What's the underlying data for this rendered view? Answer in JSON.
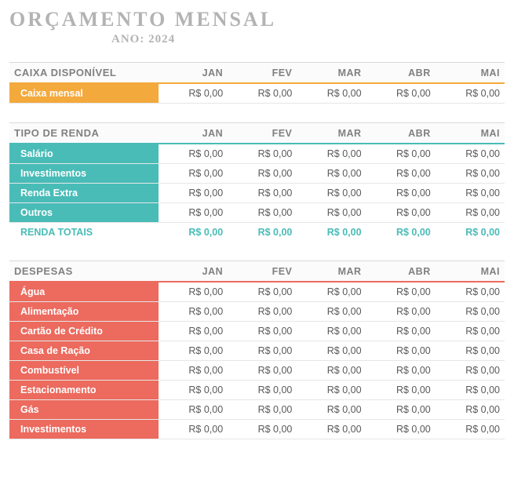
{
  "title": "ORÇAMENTO MENSAL",
  "subtitle": "ANO: 2024",
  "months": [
    "JAN",
    "FEV",
    "MAR",
    "ABR",
    "MAI"
  ],
  "zero_value": "R$ 0,00",
  "colors": {
    "caixa_accent": "#f4a93c",
    "renda_accent": "#49bcb7",
    "despesas_accent": "#ec6a5e",
    "header_text": "#808080",
    "cell_text": "#595959",
    "title_text": "#b3b3b3"
  },
  "sections": [
    {
      "id": "caixa",
      "header": "CAIXA DISPONÍVEL",
      "accent": "#f4a93c",
      "rows": [
        {
          "label": "Caixa mensal",
          "values": [
            "R$ 0,00",
            "R$ 0,00",
            "R$ 0,00",
            "R$ 0,00",
            "R$ 0,00"
          ]
        }
      ]
    },
    {
      "id": "renda",
      "header": "TIPO DE RENDA",
      "accent": "#49bcb7",
      "rows": [
        {
          "label": "Salário",
          "values": [
            "R$ 0,00",
            "R$ 0,00",
            "R$ 0,00",
            "R$ 0,00",
            "R$ 0,00"
          ]
        },
        {
          "label": "Investimentos",
          "values": [
            "R$ 0,00",
            "R$ 0,00",
            "R$ 0,00",
            "R$ 0,00",
            "R$ 0,00"
          ]
        },
        {
          "label": "Renda Extra",
          "values": [
            "R$ 0,00",
            "R$ 0,00",
            "R$ 0,00",
            "R$ 0,00",
            "R$ 0,00"
          ]
        },
        {
          "label": "Outros",
          "values": [
            "R$ 0,00",
            "R$ 0,00",
            "R$ 0,00",
            "R$ 0,00",
            "R$ 0,00"
          ]
        }
      ],
      "totals": {
        "label": "RENDA TOTAIS",
        "values": [
          "R$ 0,00",
          "R$ 0,00",
          "R$ 0,00",
          "R$ 0,00",
          "R$ 0,00"
        ]
      }
    },
    {
      "id": "despesas",
      "header": "DESPESAS",
      "accent": "#ec6a5e",
      "rows": [
        {
          "label": "Água",
          "values": [
            "R$ 0,00",
            "R$ 0,00",
            "R$ 0,00",
            "R$ 0,00",
            "R$ 0,00"
          ]
        },
        {
          "label": "Alimentação",
          "values": [
            "R$ 0,00",
            "R$ 0,00",
            "R$ 0,00",
            "R$ 0,00",
            "R$ 0,00"
          ]
        },
        {
          "label": "Cartão de Crédito",
          "values": [
            "R$ 0,00",
            "R$ 0,00",
            "R$ 0,00",
            "R$ 0,00",
            "R$ 0,00"
          ]
        },
        {
          "label": "Casa de Ração",
          "values": [
            "R$ 0,00",
            "R$ 0,00",
            "R$ 0,00",
            "R$ 0,00",
            "R$ 0,00"
          ]
        },
        {
          "label": "Combustível",
          "values": [
            "R$ 0,00",
            "R$ 0,00",
            "R$ 0,00",
            "R$ 0,00",
            "R$ 0,00"
          ]
        },
        {
          "label": "Estacionamento",
          "values": [
            "R$ 0,00",
            "R$ 0,00",
            "R$ 0,00",
            "R$ 0,00",
            "R$ 0,00"
          ]
        },
        {
          "label": "Gás",
          "values": [
            "R$ 0,00",
            "R$ 0,00",
            "R$ 0,00",
            "R$ 0,00",
            "R$ 0,00"
          ]
        },
        {
          "label": "Investimentos",
          "values": [
            "R$ 0,00",
            "R$ 0,00",
            "R$ 0,00",
            "R$ 0,00",
            "R$ 0,00"
          ]
        }
      ]
    }
  ]
}
